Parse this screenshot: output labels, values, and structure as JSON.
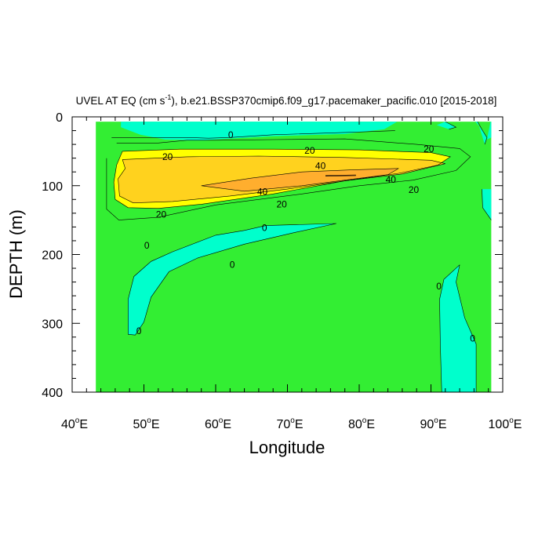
{
  "chart_data": {
    "type": "contour",
    "title": {
      "variable": "UVEL AT EQ (cm s",
      "exponent": "-1",
      "rest": "), b.e21.BSSP370cmip6.f09_g17.pacemaker_pacific.010 [2015-2018]"
    },
    "xlabel": "Longitude",
    "ylabel": "DEPTH (m)",
    "xlim": [
      40,
      100
    ],
    "ylim": [
      0,
      400
    ],
    "y_inverted": true,
    "x_ticks": [
      {
        "value": 40,
        "label": "40",
        "suffix": "E"
      },
      {
        "value": 50,
        "label": "50",
        "suffix": "E"
      },
      {
        "value": 60,
        "label": "60",
        "suffix": "E"
      },
      {
        "value": 70,
        "label": "70",
        "suffix": "E"
      },
      {
        "value": 80,
        "label": "80",
        "suffix": "E"
      },
      {
        "value": 90,
        "label": "90",
        "suffix": "E"
      },
      {
        "value": 100,
        "label": "100",
        "suffix": "E"
      }
    ],
    "y_ticks": [
      {
        "value": 0,
        "label": "0"
      },
      {
        "value": 100,
        "label": "100"
      },
      {
        "value": 200,
        "label": "200"
      },
      {
        "value": 300,
        "label": "300"
      },
      {
        "value": 400,
        "label": "400"
      }
    ],
    "data_extent": {
      "lon": [
        43.3,
        98.4
      ],
      "depth": [
        7,
        400
      ]
    },
    "contour_interval": 20,
    "fill_colors": {
      "below_0": "#00ffcc",
      "0_to_20": "#33ee33",
      "20_to_40": "#ffff00",
      "40_to_60": "#ffd21e",
      "60_to_80": "#ffae2e",
      "80_plus": "#e07b1f"
    },
    "regions": [
      {
        "level": "below_0",
        "points": [
          [
            46.8,
            7
          ],
          [
            85.3,
            7
          ],
          [
            83.5,
            18
          ],
          [
            78,
            25
          ],
          [
            68,
            28
          ],
          [
            58,
            34
          ],
          [
            53,
            33
          ],
          [
            49.5,
            26
          ],
          [
            46.8,
            15
          ]
        ]
      },
      {
        "level": "below_0",
        "points": [
          [
            92,
            7
          ],
          [
            93.5,
            15
          ],
          [
            92.5,
            18
          ],
          [
            90.8,
            12
          ]
        ]
      },
      {
        "level": "below_0",
        "points": [
          [
            96.2,
            7
          ],
          [
            97.2,
            20
          ],
          [
            97.8,
            30
          ],
          [
            97.5,
            40
          ],
          [
            96.5,
            7
          ]
        ]
      },
      {
        "level": "below_0",
        "points": [
          [
            98.3,
            7
          ],
          [
            98.4,
            7
          ],
          [
            98.4,
            30
          ],
          [
            97.8,
            33
          ]
        ]
      },
      {
        "level": "below_0",
        "points": [
          [
            67,
            158
          ],
          [
            76.8,
            155
          ],
          [
            71,
            168
          ],
          [
            64,
            185
          ],
          [
            57.5,
            205
          ],
          [
            53.5,
            225
          ],
          [
            51,
            262
          ],
          [
            50,
            298
          ],
          [
            48.8,
            317
          ],
          [
            47.8,
            316
          ],
          [
            47.8,
            265
          ],
          [
            48.6,
            232
          ],
          [
            51,
            210
          ],
          [
            54,
            196
          ],
          [
            60,
            172
          ],
          [
            64,
            165
          ]
        ]
      },
      {
        "level": "below_0",
        "points": [
          [
            94,
            215
          ],
          [
            93.5,
            240
          ],
          [
            94.7,
            292
          ],
          [
            96.3,
            330
          ],
          [
            96.3,
            400
          ],
          [
            91.5,
            400
          ],
          [
            91.3,
            330
          ],
          [
            91.2,
            265
          ],
          [
            91.8,
            236
          ]
        ]
      },
      {
        "level": "below_0",
        "points": [
          [
            97.1,
            105
          ],
          [
            98.4,
            105
          ],
          [
            98.4,
            150
          ],
          [
            97.2,
            132
          ]
        ]
      },
      {
        "level": "20_to_40",
        "points": [
          [
            47,
            50
          ],
          [
            55,
            47
          ],
          [
            68,
            47
          ],
          [
            80,
            48
          ],
          [
            90,
            52
          ],
          [
            92.7,
            58
          ],
          [
            91,
            70
          ],
          [
            85.5,
            82
          ],
          [
            78,
            93
          ],
          [
            68,
            112
          ],
          [
            58,
            127
          ],
          [
            52,
            133
          ],
          [
            47.8,
            132
          ],
          [
            46,
            120
          ],
          [
            45.8,
            95
          ],
          [
            46.2,
            70
          ]
        ]
      },
      {
        "level": "40_to_60",
        "points": [
          [
            47,
            62
          ],
          [
            56,
            58
          ],
          [
            66,
            57
          ],
          [
            78,
            59
          ],
          [
            90,
            63
          ],
          [
            92,
            68
          ],
          [
            86,
            83
          ],
          [
            78,
            93
          ],
          [
            70,
            105
          ],
          [
            62,
            115
          ],
          [
            54,
            123
          ],
          [
            48.5,
            125
          ],
          [
            46.6,
            115
          ],
          [
            46.4,
            90
          ],
          [
            47.4,
            75
          ]
        ]
      },
      {
        "level": "60_to_80",
        "points": [
          [
            58,
            100
          ],
          [
            65,
            89
          ],
          [
            72,
            80
          ],
          [
            79,
            77
          ],
          [
            85.5,
            75
          ],
          [
            84,
            84
          ],
          [
            78,
            92
          ],
          [
            72,
            100
          ],
          [
            64,
            108
          ]
        ]
      },
      {
        "level": "80_plus",
        "points": [
          [
            75.3,
            85.2
          ],
          [
            79.5,
            84.3
          ],
          [
            79.5,
            85.4
          ],
          [
            75.3,
            86.2
          ]
        ]
      }
    ],
    "contour_lines": [
      [
        [
          45.5,
          30
        ],
        [
          51,
          30
        ],
        [
          56,
          30
        ],
        [
          59,
          31
        ],
        [
          62,
          30
        ],
        [
          65,
          28
        ],
        [
          68,
          26
        ],
        [
          74,
          24
        ],
        [
          80,
          22
        ],
        [
          85,
          20
        ]
      ],
      [
        [
          46.2,
          38
        ],
        [
          52,
          38
        ],
        [
          56,
          34
        ],
        [
          60,
          34
        ],
        [
          68,
          33
        ],
        [
          78,
          32
        ],
        [
          88,
          40
        ],
        [
          94,
          46
        ],
        [
          95.5,
          58
        ],
        [
          93.5,
          78
        ],
        [
          87.5,
          92
        ],
        [
          80,
          100
        ],
        [
          72,
          112
        ],
        [
          60,
          128
        ],
        [
          52,
          146
        ],
        [
          46.5,
          150
        ],
        [
          44.8,
          134
        ],
        [
          44.8,
          60
        ]
      ],
      [
        [
          47,
          50
        ],
        [
          55,
          47
        ],
        [
          68,
          47
        ],
        [
          80,
          48
        ],
        [
          90,
          52
        ],
        [
          92.7,
          58
        ],
        [
          91,
          70
        ],
        [
          85.5,
          82
        ],
        [
          78,
          93
        ],
        [
          68,
          112
        ],
        [
          58,
          127
        ],
        [
          52,
          133
        ],
        [
          47.8,
          132
        ],
        [
          46,
          120
        ],
        [
          45.8,
          95
        ],
        [
          46.2,
          70
        ],
        [
          47,
          50
        ]
      ],
      [
        [
          47,
          62
        ],
        [
          56,
          58
        ],
        [
          66,
          57
        ],
        [
          78,
          59
        ],
        [
          90,
          63
        ],
        [
          92,
          68
        ],
        [
          86,
          83
        ],
        [
          78,
          93
        ],
        [
          70,
          105
        ],
        [
          62,
          115
        ],
        [
          54,
          123
        ],
        [
          48.5,
          125
        ],
        [
          46.6,
          115
        ],
        [
          46.4,
          90
        ],
        [
          47.4,
          75
        ],
        [
          47,
          62
        ]
      ],
      [
        [
          58,
          100
        ],
        [
          65,
          89
        ],
        [
          72,
          80
        ],
        [
          79,
          77
        ],
        [
          85.5,
          75
        ],
        [
          84,
          84
        ],
        [
          78,
          92
        ],
        [
          72,
          100
        ],
        [
          64,
          108
        ],
        [
          58,
          100
        ]
      ],
      [
        [
          75.3,
          85.2
        ],
        [
          79.5,
          84.3
        ],
        [
          79.5,
          85.4
        ],
        [
          75.3,
          86.2
        ]
      ],
      [
        [
          67,
          158
        ],
        [
          76.8,
          155
        ],
        [
          71,
          168
        ],
        [
          64,
          185
        ],
        [
          57.5,
          205
        ],
        [
          53.5,
          225
        ],
        [
          51,
          262
        ],
        [
          50,
          298
        ],
        [
          48.8,
          317
        ],
        [
          47.8,
          316
        ],
        [
          47.8,
          265
        ],
        [
          48.6,
          232
        ],
        [
          51,
          210
        ],
        [
          54,
          196
        ],
        [
          60,
          172
        ],
        [
          64,
          165
        ],
        [
          67,
          158
        ]
      ],
      [
        [
          94,
          215
        ],
        [
          93.5,
          240
        ],
        [
          94.7,
          292
        ],
        [
          96.3,
          330
        ],
        [
          96.3,
          400
        ]
      ],
      [
        [
          91.5,
          400
        ],
        [
          91.3,
          330
        ],
        [
          91.2,
          265
        ],
        [
          91.8,
          236
        ],
        [
          94,
          215
        ]
      ],
      [
        [
          96.5,
          7
        ],
        [
          97.2,
          20
        ],
        [
          97.8,
          30
        ],
        [
          97.5,
          40
        ]
      ],
      [
        [
          92,
          7
        ],
        [
          93.5,
          15
        ],
        [
          92.5,
          18
        ]
      ],
      [
        [
          97.1,
          105
        ],
        [
          97.2,
          132
        ],
        [
          98.4,
          150
        ]
      ]
    ],
    "contour_labels": [
      {
        "lon": 62.1,
        "depth": 26,
        "text": "0"
      },
      {
        "lon": 53.3,
        "depth": 58,
        "text": "20"
      },
      {
        "lon": 73.1,
        "depth": 49,
        "text": "20"
      },
      {
        "lon": 89.7,
        "depth": 47,
        "text": "20"
      },
      {
        "lon": 74.6,
        "depth": 71,
        "text": "40"
      },
      {
        "lon": 84.4,
        "depth": 91,
        "text": "40"
      },
      {
        "lon": 66.5,
        "depth": 109,
        "text": "40"
      },
      {
        "lon": 87.6,
        "depth": 106,
        "text": "20"
      },
      {
        "lon": 69.2,
        "depth": 127,
        "text": "20"
      },
      {
        "lon": 52.4,
        "depth": 142,
        "text": "20"
      },
      {
        "lon": 66.8,
        "depth": 161,
        "text": "0"
      },
      {
        "lon": 50.4,
        "depth": 187,
        "text": "0"
      },
      {
        "lon": 62.3,
        "depth": 215,
        "text": "0"
      },
      {
        "lon": 49.3,
        "depth": 311,
        "text": "0"
      },
      {
        "lon": 91.1,
        "depth": 246,
        "text": "0"
      },
      {
        "lon": 95.8,
        "depth": 322,
        "text": "0"
      }
    ]
  }
}
